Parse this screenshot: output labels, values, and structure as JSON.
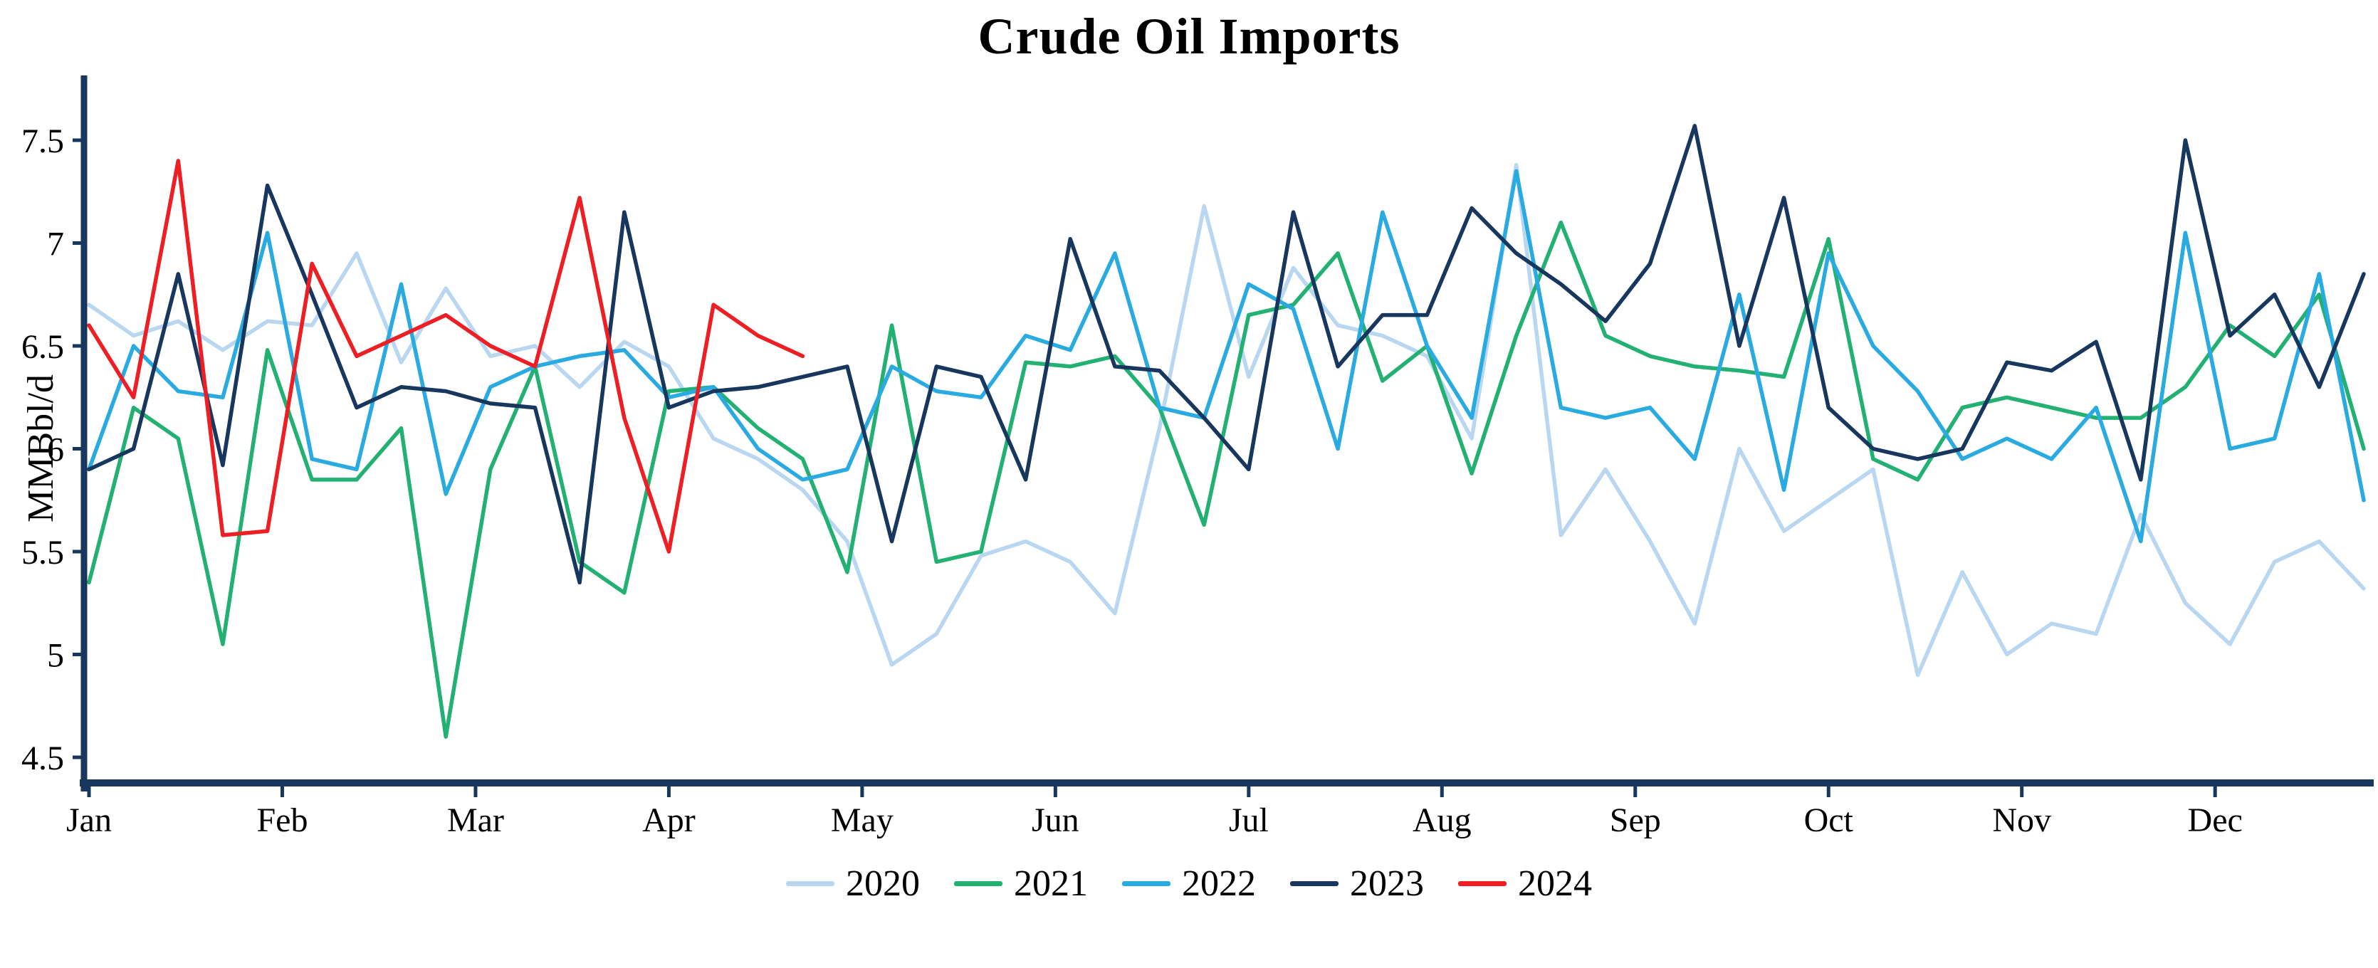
{
  "chart_data": {
    "type": "line",
    "title": "Crude Oil Imports",
    "xlabel": "",
    "ylabel": "MMBbl/d",
    "x_unit": "week",
    "weeks_per_year": 52,
    "categories": [
      "Jan",
      "Feb",
      "Mar",
      "Apr",
      "May",
      "Jun",
      "Jul",
      "Aug",
      "Sep",
      "Oct",
      "Nov",
      "Dec"
    ],
    "yticks": [
      4.5,
      5,
      5.5,
      6,
      6.5,
      7,
      7.5
    ],
    "ylim": [
      4.5,
      7.5
    ],
    "grid": false,
    "legend_position": "bottom",
    "axis_color": "#17375e",
    "series": [
      {
        "name": "2020",
        "color": "#b9d7f0",
        "values": [
          6.7,
          6.55,
          6.62,
          6.48,
          6.62,
          6.6,
          6.95,
          6.42,
          6.78,
          6.45,
          6.5,
          6.3,
          6.52,
          6.4,
          6.05,
          5.95,
          5.8,
          5.55,
          4.95,
          5.1,
          5.48,
          5.55,
          5.45,
          5.2,
          6.1,
          7.18,
          6.35,
          6.88,
          6.6,
          6.55,
          6.45,
          6.05,
          7.38,
          5.58,
          5.9,
          5.55,
          5.15,
          6.0,
          5.6,
          5.75,
          5.9,
          4.9,
          5.4,
          5.0,
          5.15,
          5.1,
          5.68,
          5.25,
          5.05,
          5.45,
          5.55,
          5.32
        ]
      },
      {
        "name": "2021",
        "color": "#22b173",
        "values": [
          5.35,
          6.2,
          6.05,
          5.05,
          6.48,
          5.85,
          5.85,
          6.1,
          4.6,
          5.9,
          6.4,
          5.45,
          5.3,
          6.28,
          6.3,
          6.1,
          5.95,
          5.4,
          6.6,
          5.45,
          5.5,
          6.42,
          6.4,
          6.45,
          6.2,
          5.63,
          6.65,
          6.7,
          6.95,
          6.33,
          6.5,
          5.88,
          6.55,
          7.1,
          6.55,
          6.45,
          6.4,
          6.38,
          6.35,
          7.02,
          5.95,
          5.85,
          6.2,
          6.25,
          6.2,
          6.15,
          6.15,
          6.3,
          6.6,
          6.45,
          6.75,
          6.0
        ]
      },
      {
        "name": "2022",
        "color": "#29abe2",
        "values": [
          5.9,
          6.5,
          6.28,
          6.25,
          7.05,
          5.95,
          5.9,
          6.8,
          5.78,
          6.3,
          6.4,
          6.45,
          6.48,
          6.25,
          6.3,
          6.0,
          5.85,
          5.9,
          6.4,
          6.28,
          6.25,
          6.55,
          6.48,
          6.95,
          6.2,
          6.15,
          6.8,
          6.68,
          6.0,
          7.15,
          6.5,
          6.15,
          7.35,
          6.2,
          6.15,
          6.2,
          5.95,
          6.75,
          5.8,
          6.95,
          6.5,
          6.28,
          5.95,
          6.05,
          5.95,
          6.2,
          5.55,
          7.05,
          6.0,
          6.05,
          6.85,
          5.75
        ]
      },
      {
        "name": "2023",
        "color": "#17375e",
        "values": [
          5.9,
          6.0,
          6.85,
          5.92,
          7.28,
          6.75,
          6.2,
          6.3,
          6.28,
          6.22,
          6.2,
          5.35,
          7.15,
          6.2,
          6.28,
          6.3,
          6.35,
          6.4,
          5.55,
          6.4,
          6.35,
          5.85,
          7.02,
          6.4,
          6.38,
          6.15,
          5.9,
          7.15,
          6.4,
          6.65,
          6.65,
          7.17,
          6.95,
          6.8,
          6.62,
          6.9,
          7.57,
          6.5,
          7.22,
          6.2,
          6.0,
          5.95,
          6.0,
          6.42,
          6.38,
          6.52,
          5.85,
          7.5,
          6.55,
          6.75,
          6.3,
          6.85
        ]
      },
      {
        "name": "2024",
        "color": "#ed1f24",
        "values": [
          6.6,
          6.25,
          7.4,
          5.58,
          5.6,
          6.9,
          6.45,
          6.55,
          6.65,
          6.5,
          6.4,
          7.22,
          6.15,
          5.5,
          6.7,
          6.55,
          6.45
        ]
      }
    ]
  }
}
